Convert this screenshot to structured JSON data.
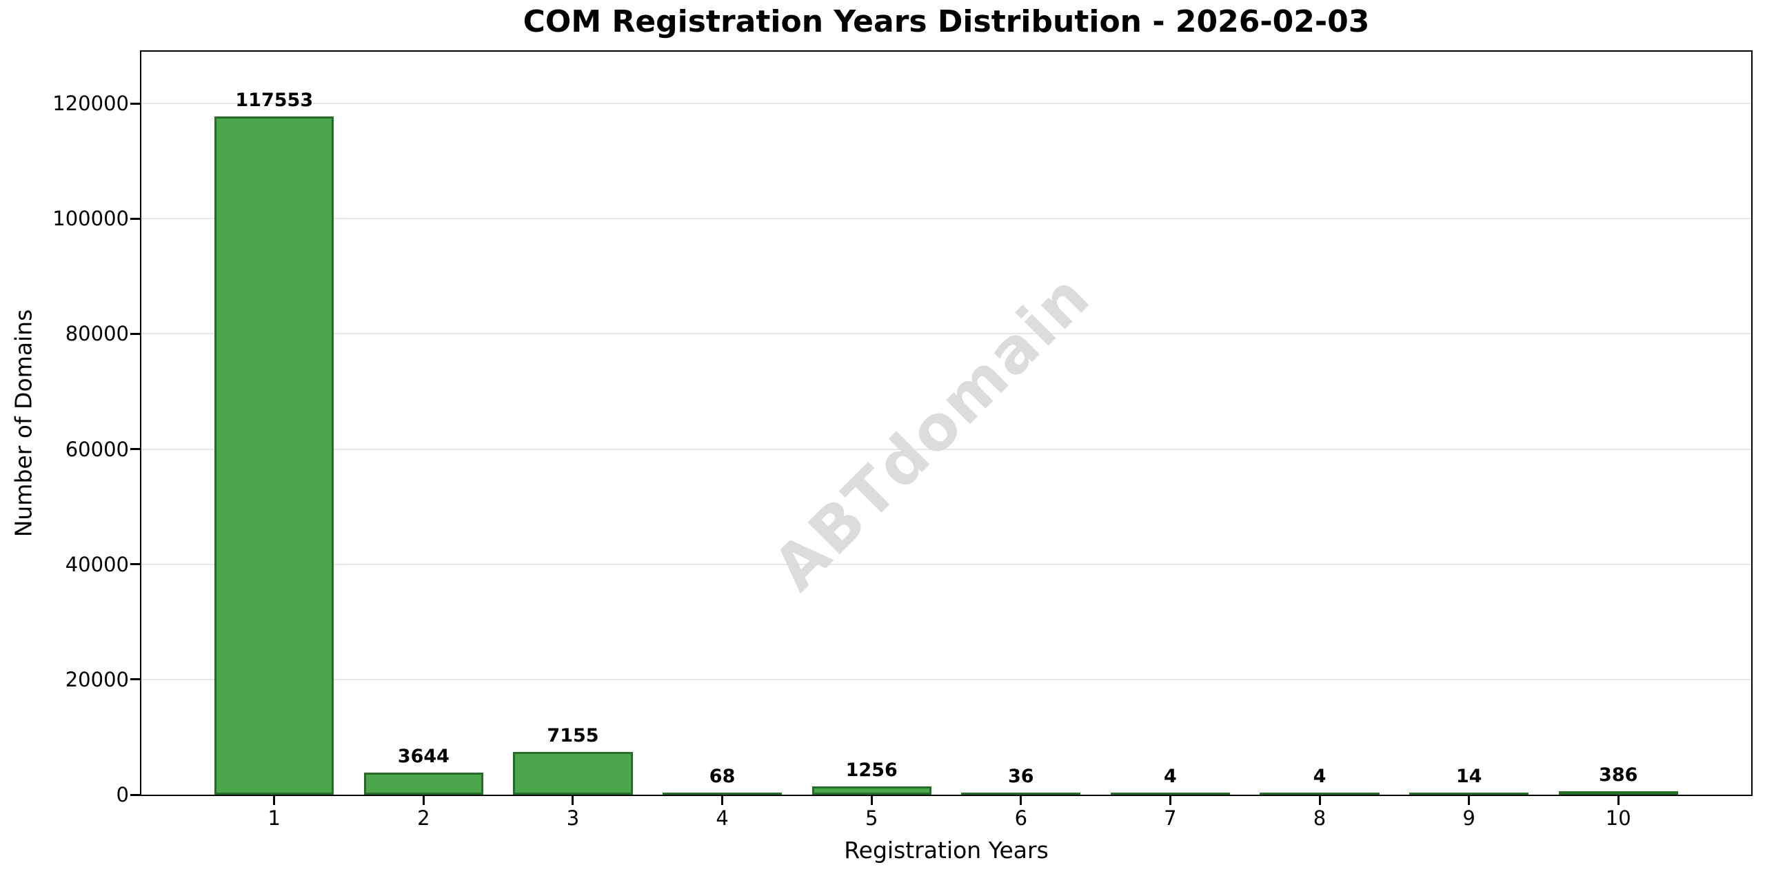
{
  "chart_data": {
    "type": "bar",
    "title": "COM Registration Years Distribution - 2026-02-03",
    "xlabel": "Registration Years",
    "ylabel": "Number of Domains",
    "categories": [
      "1",
      "2",
      "3",
      "4",
      "5",
      "6",
      "7",
      "8",
      "9",
      "10"
    ],
    "values": [
      117553,
      3644,
      7155,
      68,
      1256,
      36,
      4,
      4,
      14,
      386
    ],
    "y_ticks": [
      0,
      20000,
      40000,
      60000,
      80000,
      100000,
      120000
    ],
    "ylim": [
      0,
      129000
    ],
    "xlim": [
      0.11,
      10.89
    ],
    "bar_slot_width": 0.8,
    "grid": "horizontal",
    "legend_position": "none",
    "watermark": "ABTdomain",
    "colors": {
      "bar_fill": "#4CA64C",
      "bar_edge": "#256e25",
      "grid_line": "#e7e7e7",
      "axis_text": "#000000",
      "watermark": "#dcdcdc",
      "background": "#ffffff"
    }
  }
}
